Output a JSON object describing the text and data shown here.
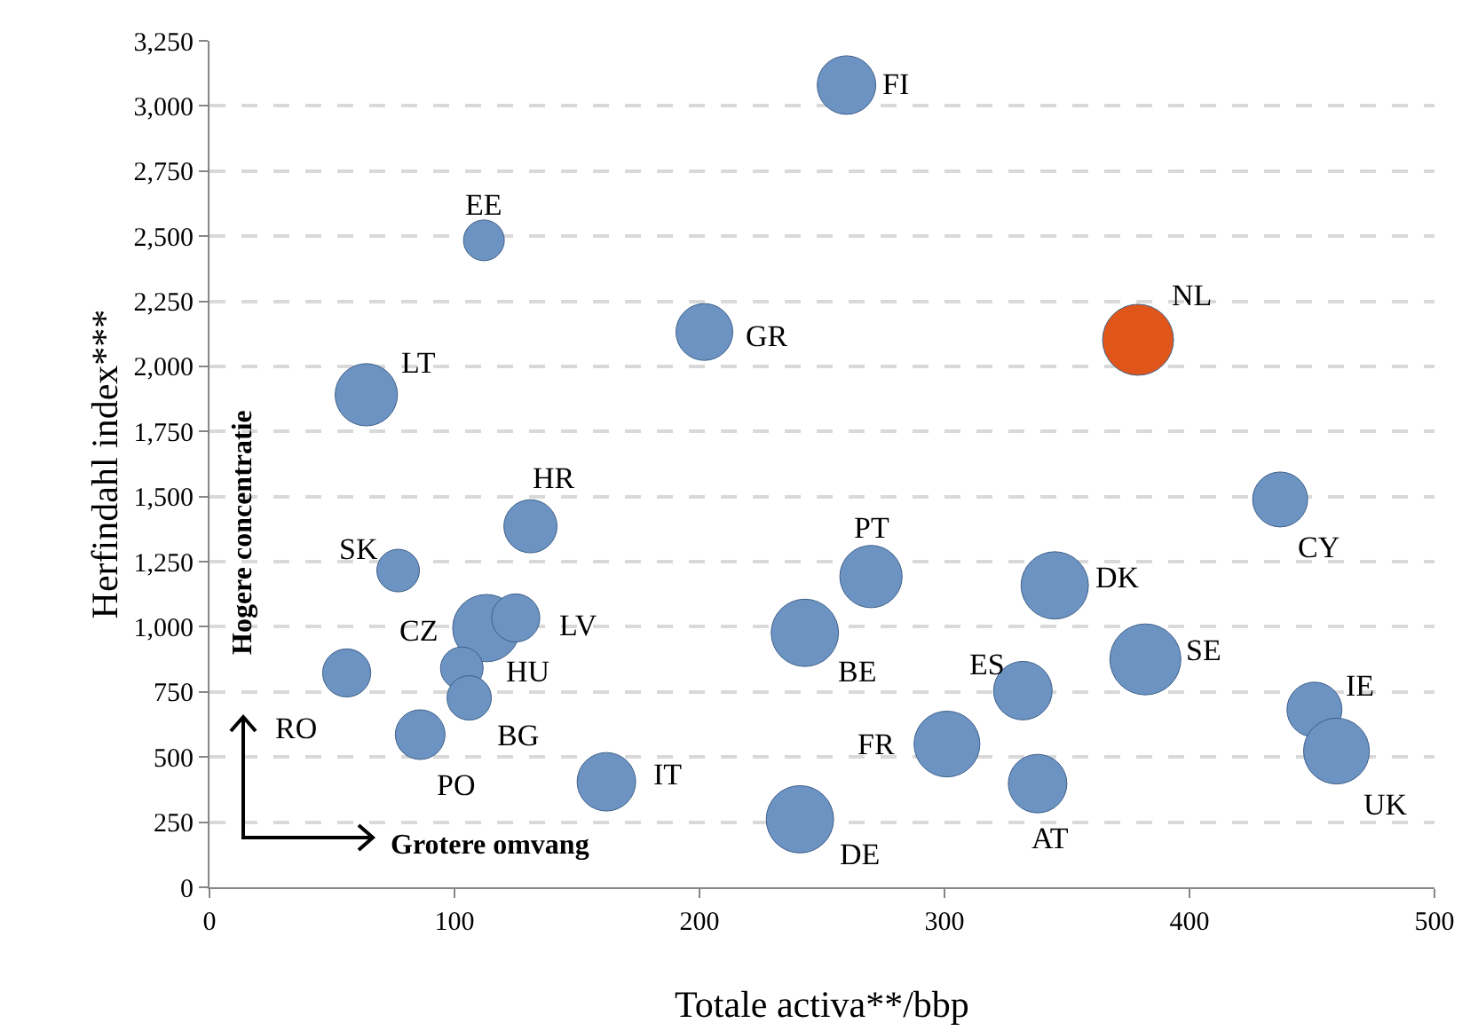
{
  "chart_data": {
    "type": "bubble",
    "xlabel": "Totale activa**/bbp",
    "ylabel": "Herfindahl index***",
    "xlim": [
      0,
      500
    ],
    "xticks": [
      0,
      100,
      200,
      300,
      400,
      500
    ],
    "ylim": [
      0,
      3250
    ],
    "yticks": [
      0,
      250,
      500,
      750,
      {
        "value": 1000,
        "label": "1,000"
      },
      {
        "value": 1250,
        "label": "1,250"
      },
      {
        "value": 1500,
        "label": "1,500"
      },
      {
        "value": 1750,
        "label": "1,750"
      },
      {
        "value": 2000,
        "label": "2,000"
      },
      {
        "value": 2250,
        "label": "2,250"
      },
      {
        "value": 2500,
        "label": "2,500"
      },
      {
        "value": 2750,
        "label": "2,750"
      },
      {
        "value": 3000,
        "label": "3,000"
      },
      {
        "value": 3250,
        "label": "3,250"
      }
    ],
    "grid": "y",
    "marker": "circle",
    "series": [
      {
        "x": [
          260,
          112,
          202,
          379,
          64,
          131,
          77,
          270,
          345,
          437,
          113,
          125,
          243,
          56,
          103,
          332,
          382,
          451,
          106,
          86,
          301,
          162,
          460,
          338,
          241
        ],
        "values": [
          3080,
          2484,
          2132,
          2102,
          1891,
          1386,
          1216,
          1193,
          1159,
          1489,
          995,
          1034,
          977,
          823,
          841,
          755,
          875,
          682,
          727,
          586,
          550,
          405,
          523,
          398,
          261
        ],
        "sizes": [
          0.68,
          0.33,
          0.64,
          1,
          0.77,
          0.56,
          0.36,
          0.77,
          0.9,
          0.6,
          0.9,
          0.46,
          0.9,
          0.46,
          0.36,
          0.68,
          1,
          0.6,
          0.39,
          0.49,
          0.86,
          0.68,
          0.86,
          0.68,
          0.9
        ],
        "colors": [
          "#6c93c2",
          "#6c93c2",
          "#6c93c2",
          "#e0561a",
          "#6c93c2",
          "#6c93c2",
          "#6c93c2",
          "#6c93c2",
          "#6c93c2",
          "#6c93c2",
          "#6c93c2",
          "#6c93c2",
          "#6c93c2",
          "#6c93c2",
          "#6c93c2",
          "#6c93c2",
          "#6c93c2",
          "#6c93c2",
          "#6c93c2",
          "#6c93c2",
          "#6c93c2",
          "#6c93c2",
          "#6c93c2",
          "#6c93c2",
          "#6c93c2"
        ]
      }
    ],
    "annotations": [
      {
        "text": "FI",
        "x": 260,
        "y": 3080
      },
      {
        "text": "EE",
        "x": 112,
        "y": 2484
      },
      {
        "text": "GR",
        "x": 202,
        "y": 2132
      },
      {
        "text": "NL",
        "x": 379,
        "y": 2102
      },
      {
        "text": "LT",
        "x": 64,
        "y": 1891
      },
      {
        "text": "HR",
        "x": 131,
        "y": 1386
      },
      {
        "text": "SK",
        "x": 77,
        "y": 1216
      },
      {
        "text": "PT",
        "x": 270,
        "y": 1193
      },
      {
        "text": "DK",
        "x": 345,
        "y": 1159
      },
      {
        "text": "CY",
        "x": 437,
        "y": 1489
      },
      {
        "text": "CZ",
        "x": 113,
        "y": 995
      },
      {
        "text": "LV",
        "x": 125,
        "y": 1034
      },
      {
        "text": "BE",
        "x": 243,
        "y": 977
      },
      {
        "text": "RO",
        "x": 56,
        "y": 823
      },
      {
        "text": "HU",
        "x": 103,
        "y": 841
      },
      {
        "text": "ES",
        "x": 332,
        "y": 755
      },
      {
        "text": "SE",
        "x": 382,
        "y": 875
      },
      {
        "text": "IE",
        "x": 451,
        "y": 682
      },
      {
        "text": "BG",
        "x": 106,
        "y": 727
      },
      {
        "text": "PO",
        "x": 86,
        "y": 586
      },
      {
        "text": "FR",
        "x": 301,
        "y": 550
      },
      {
        "text": "IT",
        "x": 162,
        "y": 405
      },
      {
        "text": "UK",
        "x": 460,
        "y": 523
      },
      {
        "text": "AT",
        "x": 338,
        "y": 398
      },
      {
        "text": "DE",
        "x": 241,
        "y": 261
      },
      "Hogere concentratie",
      "Grotere omvang"
    ]
  }
}
